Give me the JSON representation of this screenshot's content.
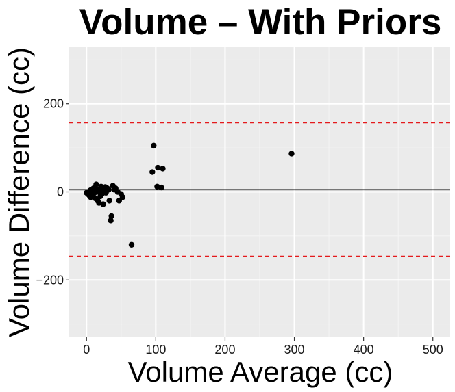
{
  "chart_data": {
    "type": "scatter",
    "title": "Volume – With Priors",
    "xlabel": "Volume Average (cc)",
    "ylabel": "Volume Difference (cc)",
    "xlim": [
      -25,
      525
    ],
    "ylim": [
      -330,
      330
    ],
    "x_ticks": [
      0,
      100,
      200,
      300,
      400,
      500
    ],
    "x_tick_labels": [
      "0",
      "100",
      "200",
      "300",
      "400",
      "500"
    ],
    "y_ticks": [
      -200,
      0,
      200
    ],
    "y_tick_labels": [
      "−200",
      "0",
      "200"
    ],
    "grid": true,
    "legend": "none",
    "reference_lines": [
      {
        "name": "mean-difference-line",
        "y": 5,
        "color": "#000000",
        "style": "solid"
      },
      {
        "name": "upper-limit-line",
        "y": 157,
        "color": "#e41a1c",
        "style": "dashed"
      },
      {
        "name": "lower-limit-line",
        "y": -146,
        "color": "#e41a1c",
        "style": "dashed"
      }
    ],
    "series": [
      {
        "name": "volume difference",
        "color": "#000000",
        "points": [
          [
            0,
            -2
          ],
          [
            2,
            -5
          ],
          [
            3,
            0
          ],
          [
            4,
            -8
          ],
          [
            5,
            3
          ],
          [
            6,
            -12
          ],
          [
            7,
            5
          ],
          [
            8,
            2
          ],
          [
            9,
            -6
          ],
          [
            10,
            8
          ],
          [
            11,
            -3
          ],
          [
            12,
            10
          ],
          [
            13,
            -15
          ],
          [
            14,
            17
          ],
          [
            15,
            4
          ],
          [
            16,
            -20
          ],
          [
            17,
            0
          ],
          [
            18,
            -25
          ],
          [
            19,
            6
          ],
          [
            20,
            -10
          ],
          [
            21,
            12
          ],
          [
            22,
            -5
          ],
          [
            23,
            2
          ],
          [
            24,
            -28
          ],
          [
            25,
            7
          ],
          [
            26,
            3
          ],
          [
            27,
            11
          ],
          [
            28,
            -2
          ],
          [
            30,
            8
          ],
          [
            32,
            5
          ],
          [
            33,
            -20
          ],
          [
            35,
            -65
          ],
          [
            36,
            -55
          ],
          [
            38,
            14
          ],
          [
            40,
            5
          ],
          [
            42,
            8
          ],
          [
            45,
            0
          ],
          [
            47,
            -20
          ],
          [
            50,
            -5
          ],
          [
            52,
            -12
          ],
          [
            65,
            -120
          ],
          [
            95,
            45
          ],
          [
            97,
            105
          ],
          [
            102,
            12
          ],
          [
            103,
            55
          ],
          [
            108,
            10
          ],
          [
            110,
            53
          ],
          [
            296,
            87
          ]
        ]
      }
    ]
  }
}
